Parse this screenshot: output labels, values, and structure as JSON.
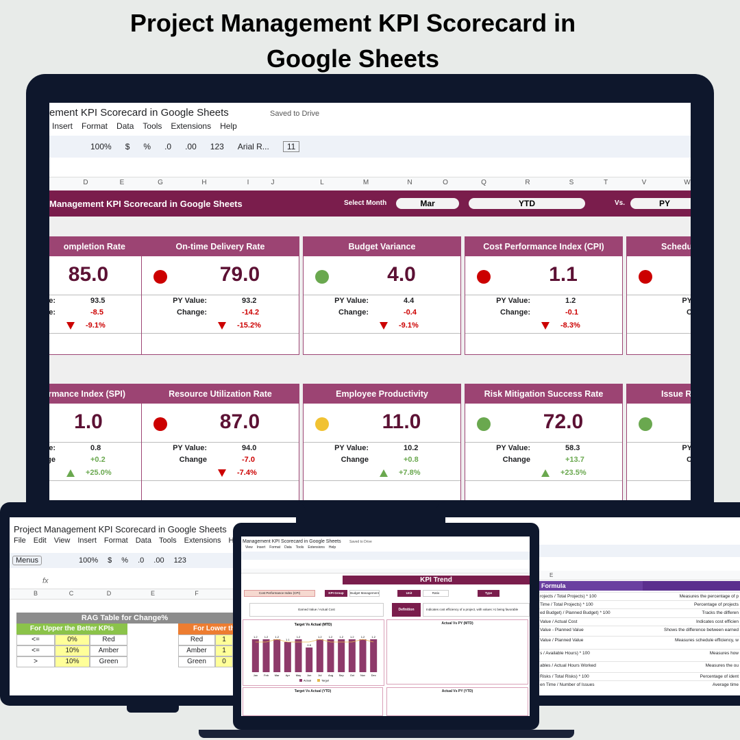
{
  "title": "Project Management KPI Scorecard in Google Sheets",
  "main_sheet": {
    "doc_title": "ement KPI Scorecard in Google Sheets",
    "saved": "Saved to Drive",
    "menu": [
      "Insert",
      "Format",
      "Data",
      "Tools",
      "Extensions",
      "Help"
    ],
    "toolbar": [
      "100%",
      "$",
      "%",
      ".0",
      ".00",
      "123",
      "Arial R...",
      "11"
    ],
    "columns": [
      "D",
      "E",
      "G",
      "H",
      "I",
      "J",
      "L",
      "M",
      "N",
      "O",
      "Q",
      "R",
      "S",
      "T",
      "V",
      "W"
    ],
    "banner": "Management KPI Scorecard in Google Sheets",
    "select_month_label": "Select Month",
    "month": "Mar",
    "period": "YTD",
    "vs_label": "Vs.",
    "compare": "PY",
    "cards": [
      {
        "title": "ompletion Rate",
        "value": "85.0",
        "py_label": "alue:",
        "py": "93.5",
        "change_label": "hange:",
        "change": "-8.5",
        "pct": "-9.1%",
        "direction": "down"
      },
      {
        "title": "On-time Delivery Rate",
        "value": "79.0",
        "status_color": "#cc0000",
        "py_label": "PY Value:",
        "py": "93.2",
        "change_label": "Change:",
        "change": "-14.2",
        "pct": "-15.2%",
        "direction": "down"
      },
      {
        "title": "Budget Variance",
        "value": "4.0",
        "status_color": "#6aa84f",
        "py_label": "PY Value:",
        "py": "4.4",
        "change_label": "Change:",
        "change": "-0.4",
        "pct": "-9.1%",
        "direction": "down"
      },
      {
        "title": "Cost Performance Index (CPI)",
        "value": "1.1",
        "status_color": "#cc0000",
        "py_label": "PY Value:",
        "py": "1.2",
        "change_label": "Change:",
        "change": "-0.1",
        "pct": "-8.3%",
        "direction": "down"
      },
      {
        "title": "Schedul",
        "status_color": "#cc0000",
        "py_label": "PY",
        "change_label": "C"
      },
      {
        "title": "rmance Index (SPI)",
        "value": "1.0",
        "py_label": "alue:",
        "py": "0.8",
        "change_label": "hange",
        "change": "+0.2",
        "pct": "+25.0%",
        "direction": "up"
      },
      {
        "title": "Resource Utilization Rate",
        "value": "87.0",
        "status_color": "#cc0000",
        "py_label": "PY Value:",
        "py": "94.0",
        "change_label": "Change",
        "change": "-7.0",
        "pct": "-7.4%",
        "direction": "down"
      },
      {
        "title": "Employee Productivity",
        "value": "11.0",
        "status_color": "#f1c232",
        "py_label": "PY Value:",
        "py": "10.2",
        "change_label": "Change",
        "change": "+0.8",
        "pct": "+7.8%",
        "direction": "up"
      },
      {
        "title": "Risk Mitigation Success Rate",
        "value": "72.0",
        "status_color": "#6aa84f",
        "py_label": "PY Value:",
        "py": "58.3",
        "change_label": "Change",
        "change": "+13.7",
        "pct": "+23.5%",
        "direction": "up"
      },
      {
        "title": "Issue R",
        "status_color": "#6aa84f",
        "py_label": "PY",
        "change_label": "C"
      }
    ]
  },
  "left_sheet": {
    "title": "Project Management KPI Scorecard in Google Sheets",
    "menu": [
      "File",
      "Edit",
      "View",
      "Insert",
      "Format",
      "Data",
      "Tools",
      "Extensions",
      "He"
    ],
    "toolbar": [
      "Menus",
      "100%",
      "$",
      "%",
      ".0",
      ".00",
      "123"
    ],
    "formula_label": "fx",
    "columns": [
      "B",
      "C",
      "D",
      "E",
      "F"
    ],
    "rag_title": "RAG Table for Change%",
    "upper_header": "For Upper the Better KPIs",
    "upper_rows": [
      [
        "<=",
        "0%",
        "Red"
      ],
      [
        "<=",
        "10%",
        "Amber"
      ],
      [
        ">",
        "10%",
        "Green"
      ]
    ],
    "lower_header": "For Lower th",
    "lower_rows": [
      [
        "Red",
        "1"
      ],
      [
        "Amber",
        "1"
      ],
      [
        "Green",
        "0"
      ]
    ]
  },
  "center_sheet": {
    "title": "Management KPI Scorecard in Google Sheets",
    "saved": "Saved to Drive",
    "menu": [
      "View",
      "Insert",
      "Format",
      "Data",
      "Tools",
      "Extensions",
      "Help"
    ],
    "section": "KPI Trend",
    "kpi": "Cost Performance Index (CPI)",
    "group_label": "KPI Group",
    "group": "Budget Management",
    "unit_label": "Unit",
    "unit": "Ratio",
    "type_label": "Type",
    "formula": "Earned Value / Actual Cost",
    "definition_label": "Definition",
    "definition": "Indicates cost efficiency of a project, with values >1 being favorable",
    "chart_titles": [
      "Actual Vs PY (MTD)",
      "Target Vs Actual (YTD)",
      "Actual Vs PY (YTD)"
    ],
    "chart_data": {
      "type": "bar",
      "title": "Target Vs Actual (MTD)",
      "categories": [
        "Jan",
        "Feb",
        "Mar",
        "Apr",
        "May",
        "Jun",
        "Jul",
        "Aug",
        "Sep",
        "Oct",
        "Nov",
        "Dec"
      ],
      "series": [
        {
          "name": "Actual",
          "type": "bar",
          "color": "#8e3a6a",
          "values": [
            1.2,
            1.2,
            1.2,
            1.1,
            1.2,
            0.9,
            1.2,
            1.2,
            1.2,
            1.2,
            1.2,
            1.2
          ]
        },
        {
          "name": "Target",
          "type": "line",
          "color": "#e6b84c",
          "values": [
            1.1,
            1.1,
            1.2,
            1.1,
            1.1,
            1.1,
            1.2,
            1.1,
            1.1,
            1.1,
            1.2,
            1.1
          ]
        }
      ],
      "ylim": [
        0,
        1.5
      ]
    }
  },
  "right_sheet": {
    "column": "E",
    "header": "Formula",
    "rows": [
      [
        "rojects / Total Projects) * 100",
        "Measures the percentage of p"
      ],
      [
        "Time / Total Projects) * 100",
        "Percentage of projects"
      ],
      [
        "ed Budget) / Planned Budget) * 100",
        "Tracks the differen"
      ],
      [
        "Value / Actual Cost",
        "Indicates cost efficien"
      ],
      [
        "Value - Planned Value",
        "Shows the difference between earned"
      ],
      [
        "Value / Planned Value",
        "Measures schedule efficiency, w"
      ],
      [
        "s / Available Hours) * 100",
        "Measures how"
      ],
      [
        "ables / Actual Hours Worked",
        "Measures the ou"
      ],
      [
        "Risks / Total Risks) * 100",
        "Percentage of ident"
      ],
      [
        "en Time / Number of Issues",
        "Average time"
      ]
    ]
  }
}
